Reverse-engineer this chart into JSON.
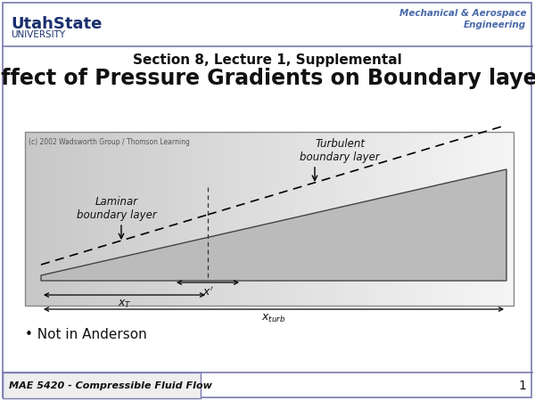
{
  "bg_color": "#ffffff",
  "border_color": "#7a7ab0",
  "title_sub": "Section 8, Lecture 1, Supplemental",
  "title_main": "Effect of Pressure Gradients on Boundary layer",
  "bullet": "Not in Anderson",
  "footer_left": "MAE 5420 - Compressible Fluid Flow",
  "footer_page": "1",
  "uth_text1": "UtahState",
  "uth_text2": "UNIVERSITY",
  "mech_text1": "Mechanical & Aerospace",
  "mech_text2": "Engineering",
  "diagram_copyright": "(c) 2002 Wadsworth Group / Thomson Learning",
  "laminar_label": "Laminar\nboundary layer",
  "turbulent_label": "Turbulent\nboundary layer"
}
